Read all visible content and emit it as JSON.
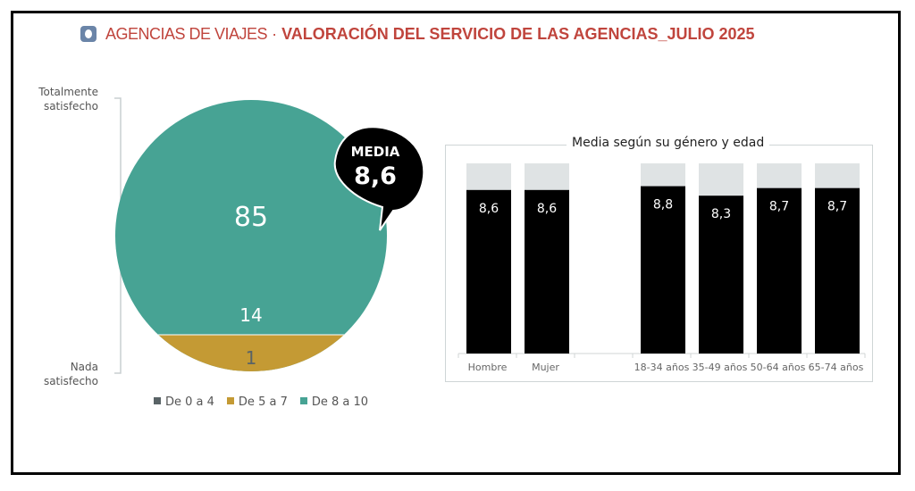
{
  "header": {
    "icon": "rounded-square-icon",
    "section": "AGENCIAS DE VIAJES",
    "separator": "·",
    "title": "VALORACIÓN DEL SERVICIO DE LAS AGENCIAS_JULIO 2025"
  },
  "colors": {
    "accent": "#c0453d",
    "teal": "#47a394",
    "gold": "#c49a34",
    "dark": "#596366",
    "bar": "#000000",
    "bar_bg": "#dfe3e4"
  },
  "chart_data": [
    {
      "type": "pie",
      "scale_top_label": "Totalmente satisfecho",
      "scale_bottom_label": "Nada satisfecho",
      "slices": [
        {
          "name": "De 0 a 4",
          "value": 1,
          "color": "#596366"
        },
        {
          "name": "De 5 a 7",
          "value": 14,
          "color": "#c49a34"
        },
        {
          "name": "De 8 a 10",
          "value": 85,
          "color": "#47a394"
        }
      ],
      "labels": {
        "top": "85",
        "middle": "14",
        "bottom": "1"
      },
      "badge": {
        "label": "MEDIA",
        "value": "8,6"
      }
    },
    {
      "type": "bar",
      "title": "Media según su género y edad",
      "categories": [
        "Hombre",
        "Mujer",
        "",
        "18-34 años",
        "35-49 años",
        "50-64 años",
        "65-74 años"
      ],
      "values": [
        8.6,
        8.6,
        null,
        8.8,
        8.3,
        8.7,
        8.7
      ],
      "value_labels": [
        "8,6",
        "8,6",
        "",
        "8,8",
        "8,3",
        "8,7",
        "8,7"
      ],
      "ylim": [
        0,
        10
      ]
    }
  ]
}
